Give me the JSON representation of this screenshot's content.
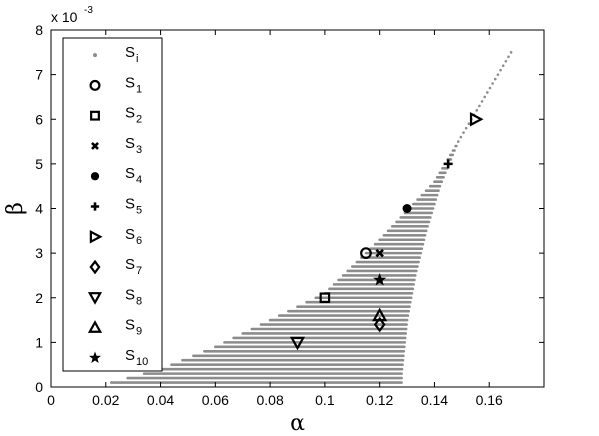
{
  "chart_data": {
    "type": "scatter",
    "xlabel": "α",
    "ylabel": "β",
    "y_multiplier": "x 10",
    "y_multiplier_exp": "-3",
    "xlim": [
      0,
      0.18
    ],
    "ylim": [
      0,
      8
    ],
    "xticks": [
      0,
      0.02,
      0.04,
      0.06,
      0.08,
      0.1,
      0.12,
      0.14,
      0.16
    ],
    "xtick_labels": [
      "0",
      "0.02",
      "0.04",
      "0.06",
      "0.08",
      "0.1",
      "0.12",
      "0.14",
      "0.16"
    ],
    "yticks": [
      0,
      1,
      2,
      3,
      4,
      5,
      6,
      7,
      8
    ],
    "ytick_labels": [
      "0",
      "1",
      "2",
      "3",
      "4",
      "5",
      "6",
      "7",
      "8"
    ],
    "grid": false,
    "legend_position": "top-left",
    "feasible_region": {
      "name_main": "S",
      "name_sub": "i",
      "color": "#8c8c8c",
      "y_range": [
        0.1,
        7.5
      ],
      "y_step": 0.1,
      "left_boundary": [
        [
          0.022,
          0.1
        ],
        [
          0.04,
          0.4
        ],
        [
          0.06,
          0.9
        ],
        [
          0.08,
          1.5
        ],
        [
          0.1,
          2.1
        ],
        [
          0.12,
          3.3
        ],
        [
          0.14,
          4.6
        ],
        [
          0.168,
          7.5
        ]
      ],
      "right_boundary": [
        [
          0.128,
          0.1
        ],
        [
          0.128,
          0.3
        ],
        [
          0.13,
          1.5
        ],
        [
          0.133,
          2.5
        ],
        [
          0.137,
          3.5
        ],
        [
          0.142,
          4.5
        ],
        [
          0.15,
          5.7
        ],
        [
          0.159,
          6.8
        ],
        [
          0.168,
          7.5
        ]
      ]
    },
    "series": [
      {
        "name_main": "S",
        "name_sub": "1",
        "marker": "circle",
        "x": 0.115,
        "y": 3.0
      },
      {
        "name_main": "S",
        "name_sub": "2",
        "marker": "square",
        "x": 0.1,
        "y": 2.0
      },
      {
        "name_main": "S",
        "name_sub": "3",
        "marker": "x",
        "x": 0.12,
        "y": 3.0
      },
      {
        "name_main": "S",
        "name_sub": "4",
        "marker": "dot",
        "x": 0.13,
        "y": 4.0
      },
      {
        "name_main": "S",
        "name_sub": "5",
        "marker": "plus",
        "x": 0.145,
        "y": 5.0
      },
      {
        "name_main": "S",
        "name_sub": "6",
        "marker": "triangle-right",
        "x": 0.155,
        "y": 6.0
      },
      {
        "name_main": "S",
        "name_sub": "7",
        "marker": "diamond",
        "x": 0.12,
        "y": 1.4
      },
      {
        "name_main": "S",
        "name_sub": "8",
        "marker": "triangle-down",
        "x": 0.09,
        "y": 1.0
      },
      {
        "name_main": "S",
        "name_sub": "9",
        "marker": "triangle-up",
        "x": 0.12,
        "y": 1.6
      },
      {
        "name_main": "S",
        "name_sub": "10",
        "marker": "star",
        "x": 0.12,
        "y": 2.4
      }
    ]
  }
}
